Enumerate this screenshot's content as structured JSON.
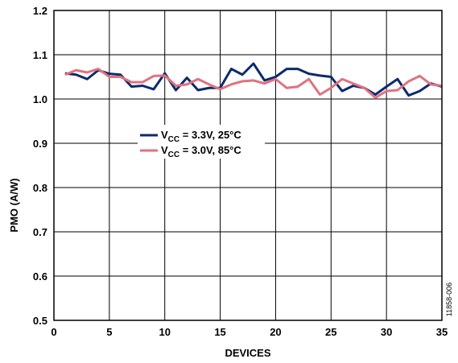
{
  "chart_data": {
    "type": "line",
    "xlabel": "DEVICES",
    "ylabel": "PMO (A/W)",
    "xlim": [
      0,
      35
    ],
    "ylim": [
      0.5,
      1.2
    ],
    "xticks": [
      "0",
      "5",
      "10",
      "15",
      "20",
      "25",
      "30",
      "35"
    ],
    "yticks": [
      "0.5",
      "0.6",
      "0.7",
      "0.8",
      "0.9",
      "1.0",
      "1.1",
      "1.2"
    ],
    "grid": true,
    "legend_position": "center-left",
    "figure_id": "11858-006",
    "series": [
      {
        "legend_main": "V",
        "legend_sub": "CC",
        "legend_rest": " = 3.3V, 25°C",
        "color": "#0d2a6e",
        "x": [
          1,
          2,
          3,
          4,
          5,
          6,
          7,
          8,
          9,
          10,
          11,
          12,
          13,
          14,
          15,
          16,
          17,
          18,
          19,
          20,
          21,
          22,
          23,
          24,
          25,
          26,
          27,
          28,
          29,
          30,
          31,
          32,
          33,
          34,
          35
        ],
        "y": [
          1.058,
          1.055,
          1.045,
          1.065,
          1.057,
          1.055,
          1.028,
          1.03,
          1.022,
          1.058,
          1.02,
          1.048,
          1.02,
          1.025,
          1.025,
          1.068,
          1.055,
          1.08,
          1.042,
          1.05,
          1.068,
          1.068,
          1.057,
          1.053,
          1.05,
          1.018,
          1.03,
          1.025,
          1.01,
          1.028,
          1.045,
          1.008,
          1.018,
          1.035,
          1.028
        ]
      },
      {
        "legend_main": "V",
        "legend_sub": "CC",
        "legend_rest": " = 3.0V, 85°C",
        "color": "#e0727f",
        "x": [
          1,
          2,
          3,
          4,
          5,
          6,
          7,
          8,
          9,
          10,
          11,
          12,
          13,
          14,
          15,
          16,
          17,
          18,
          19,
          20,
          21,
          22,
          23,
          24,
          25,
          26,
          27,
          28,
          29,
          30,
          31,
          32,
          33,
          34,
          35
        ],
        "y": [
          1.055,
          1.065,
          1.06,
          1.068,
          1.05,
          1.05,
          1.038,
          1.038,
          1.052,
          1.053,
          1.03,
          1.033,
          1.045,
          1.033,
          1.022,
          1.033,
          1.04,
          1.042,
          1.035,
          1.045,
          1.025,
          1.028,
          1.045,
          1.01,
          1.025,
          1.045,
          1.035,
          1.025,
          1.003,
          1.018,
          1.02,
          1.04,
          1.052,
          1.033,
          1.03
        ]
      }
    ]
  }
}
